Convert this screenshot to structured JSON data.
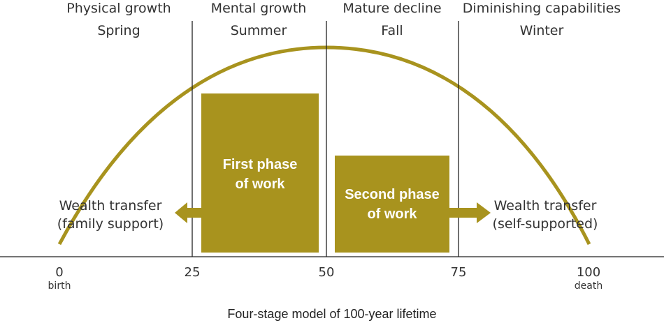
{
  "stages": [
    {
      "name": "Physical growth",
      "season": "Spring"
    },
    {
      "name": "Mental growth",
      "season": "Summer"
    },
    {
      "name": "Mature decline",
      "season": "Fall"
    },
    {
      "name": "Diminishing capabilities",
      "season": "Winter"
    }
  ],
  "boxes": {
    "first": [
      "First phase",
      "of work"
    ],
    "second": [
      "Second phase",
      "of work"
    ]
  },
  "transfers": {
    "left": [
      "Wealth transfer",
      "(family support)"
    ],
    "right": [
      "Wealth transfer",
      "(self-supported)"
    ]
  },
  "axis": {
    "ticks": [
      "0",
      "25",
      "50",
      "75",
      "100"
    ],
    "start_label": "birth",
    "end_label": "death"
  },
  "caption": "Four-stage model of 100-year lifetime",
  "colors": {
    "accent": "#A8931E",
    "line": "#222222",
    "text": "#333333"
  }
}
